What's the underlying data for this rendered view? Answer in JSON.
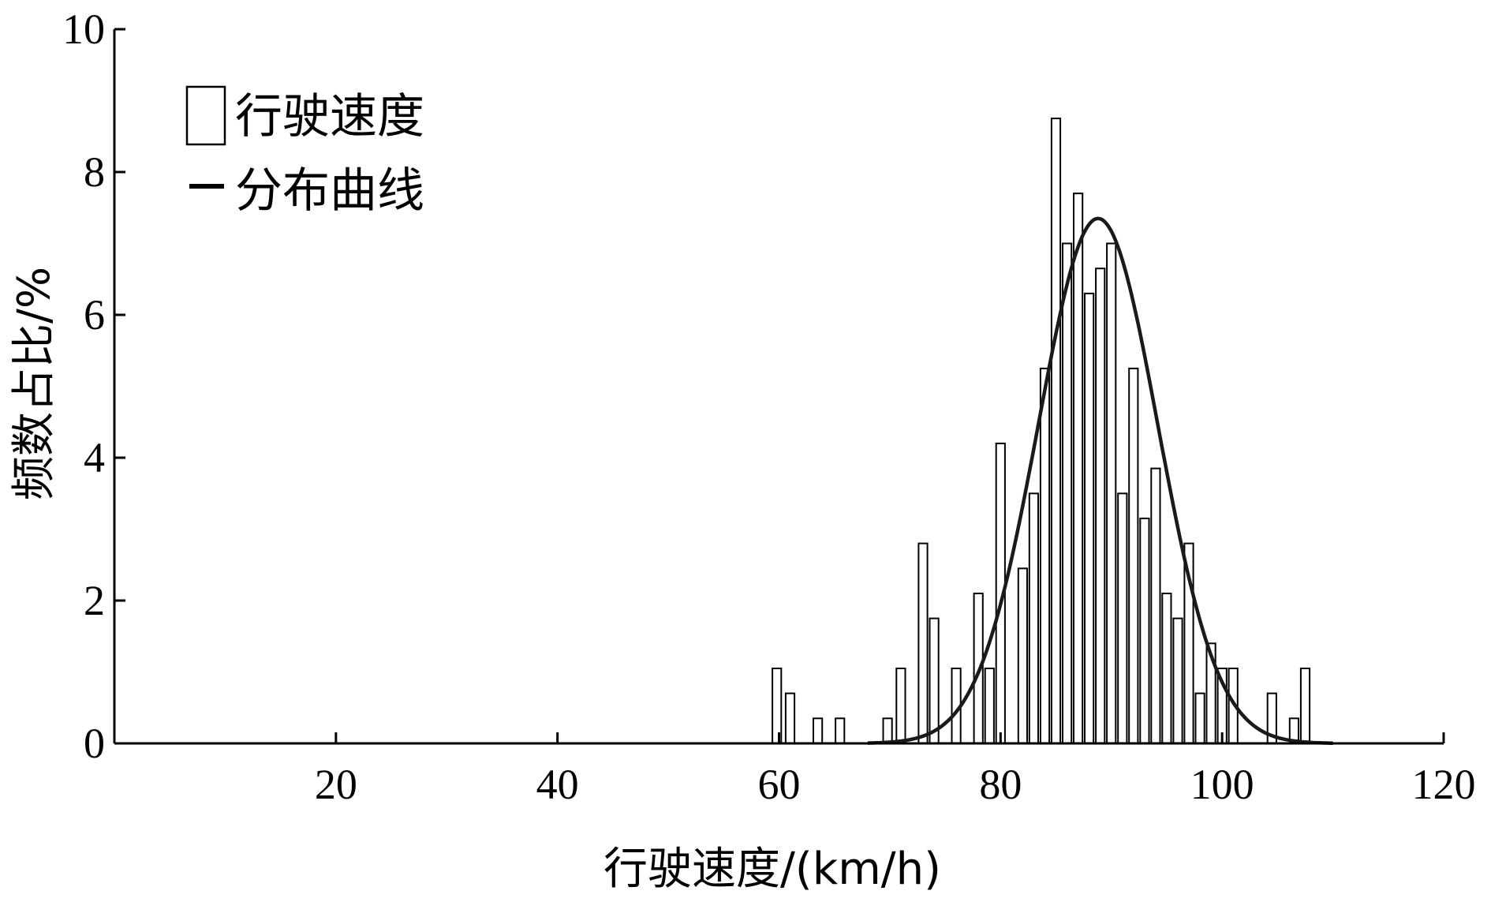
{
  "chart_data": {
    "type": "bar",
    "xlabel": "行驶速度/(km/h)",
    "ylabel": "频数占比/%",
    "xlim": [
      0,
      120
    ],
    "ylim": [
      0,
      10
    ],
    "xticks": [
      20,
      40,
      60,
      80,
      100,
      120
    ],
    "yticks": [
      0,
      2,
      4,
      6,
      8,
      10
    ],
    "grid": false,
    "legend": {
      "position": "top-left"
    },
    "series": [
      {
        "name": "行驶速度",
        "kind": "histogram",
        "bin_width": 0.8,
        "x": [
          59.8,
          61.0,
          63.5,
          65.5,
          69.8,
          71.0,
          73.0,
          74.0,
          76.0,
          78.0,
          79.0,
          80.0,
          82.0,
          83.0,
          84.0,
          85.0,
          86.0,
          87.0,
          88.0,
          89.0,
          90.0,
          91.0,
          92.0,
          93.0,
          94.0,
          95.0,
          96.0,
          97.0,
          98.0,
          99.0,
          100.0,
          101.0,
          102.0,
          104.5,
          106.5,
          107.5
        ],
        "values": [
          1.05,
          0.7,
          0.35,
          0.35,
          0.35,
          1.05,
          2.8,
          1.75,
          1.05,
          2.1,
          1.05,
          4.2,
          2.45,
          3.5,
          5.25,
          8.75,
          7.0,
          7.7,
          6.3,
          6.65,
          7.0,
          3.5,
          5.25,
          3.15,
          3.85,
          2.1,
          1.75,
          2.8,
          0.7,
          1.4,
          1.05,
          1.05,
          0.0,
          0.7,
          0.35,
          1.05
        ]
      },
      {
        "name": "分布曲线",
        "kind": "line",
        "mu": 88.8,
        "sigma": 5.4,
        "peak": 7.35,
        "x_range": [
          68,
          110
        ]
      }
    ]
  }
}
